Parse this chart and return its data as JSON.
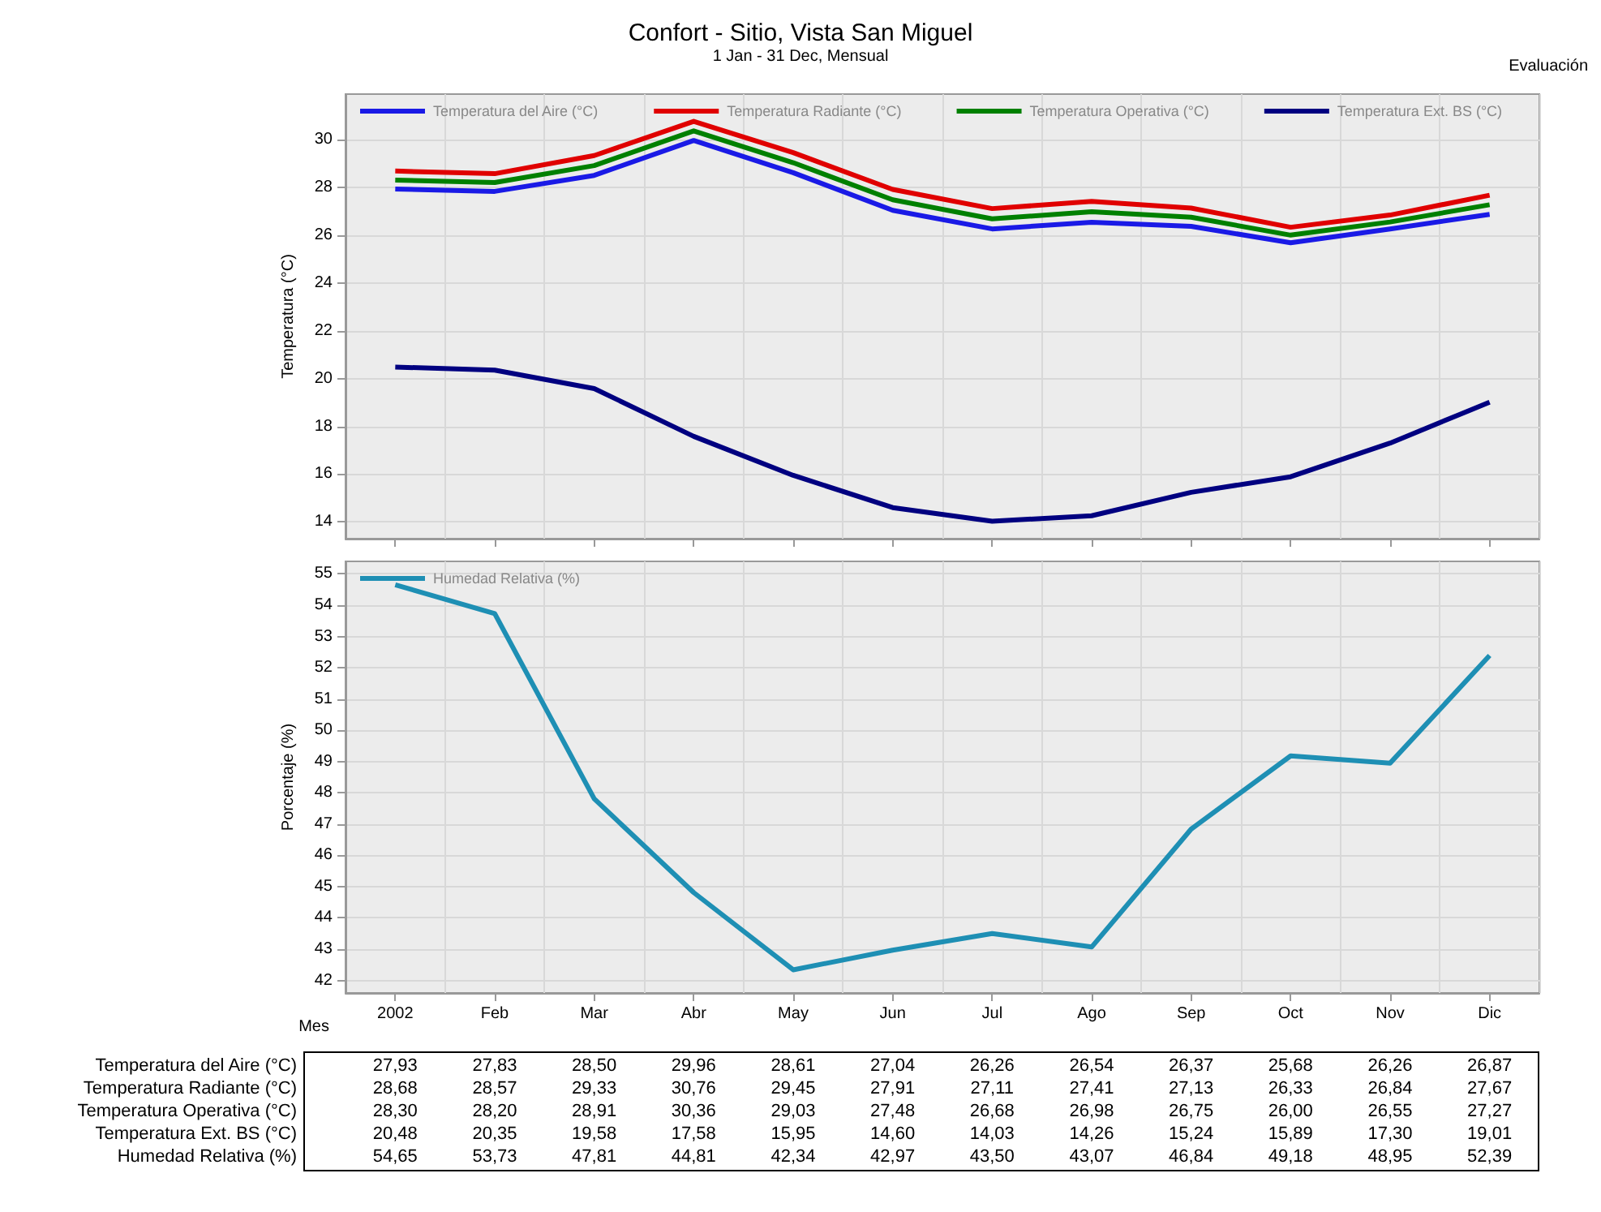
{
  "chart_data": [
    {
      "type": "line",
      "title": "Confort - Sitio, Vista San Miguel",
      "subtitle": "1 Jan - 31 Dec, Mensual",
      "annotations": [
        "Evaluación"
      ],
      "ylabel": "Temperatura (°C)",
      "categories": [
        "2002",
        "Feb",
        "Mar",
        "Abr",
        "May",
        "Jun",
        "Jul",
        "Ago",
        "Sep",
        "Oct",
        "Nov",
        "Dic"
      ],
      "series": [
        {
          "name": "Temperatura del Aire (°C)",
          "color": "#1a1ae6",
          "values": [
            27.93,
            27.83,
            28.5,
            29.96,
            28.61,
            27.04,
            26.26,
            26.54,
            26.37,
            25.68,
            26.26,
            26.87
          ],
          "value_labels": [
            "27,93",
            "27,83",
            "28,50",
            "29,96",
            "28,61",
            "27,04",
            "26,26",
            "26,54",
            "26,37",
            "25,68",
            "26,26",
            "26,87"
          ]
        },
        {
          "name": "Temperatura Radiante (°C)",
          "color": "#e00000",
          "values": [
            28.68,
            28.57,
            29.33,
            30.76,
            29.45,
            27.91,
            27.11,
            27.41,
            27.13,
            26.33,
            26.84,
            27.67
          ],
          "value_labels": [
            "28,68",
            "28,57",
            "29,33",
            "30,76",
            "29,45",
            "27,91",
            "27,11",
            "27,41",
            "27,13",
            "26,33",
            "26,84",
            "27,67"
          ]
        },
        {
          "name": "Temperatura Operativa (°C)",
          "color": "#008000",
          "values": [
            28.3,
            28.2,
            28.91,
            30.36,
            29.03,
            27.48,
            26.68,
            26.98,
            26.75,
            26.0,
            26.55,
            27.27
          ],
          "value_labels": [
            "28,30",
            "28,20",
            "28,91",
            "30,36",
            "29,03",
            "27,48",
            "26,68",
            "26,98",
            "26,75",
            "26,00",
            "26,55",
            "27,27"
          ]
        },
        {
          "name": "Temperatura Ext. BS (°C)",
          "color": "#000080",
          "values": [
            20.48,
            20.35,
            19.58,
            17.58,
            15.95,
            14.6,
            14.03,
            14.26,
            15.24,
            15.89,
            17.3,
            19.01
          ],
          "value_labels": [
            "20,48",
            "20,35",
            "19,58",
            "17,58",
            "15,95",
            "14,60",
            "14,03",
            "14,26",
            "15,24",
            "15,89",
            "17,30",
            "19,01"
          ]
        }
      ],
      "ylim": [
        13.3,
        31.9
      ],
      "yticks": [
        14,
        16,
        18,
        20,
        22,
        24,
        26,
        28,
        30
      ],
      "grid": true,
      "legend": "top",
      "tick_labels": "y"
    },
    {
      "type": "line",
      "xlabel": "Mes",
      "ylabel": "Porcentaje (%)",
      "series": [
        {
          "name": "Humedad Relativa (%)",
          "color": "#1e8fb4",
          "values": [
            54.65,
            53.73,
            47.81,
            44.81,
            42.34,
            42.97,
            43.5,
            43.07,
            46.84,
            49.18,
            48.95,
            52.39
          ],
          "value_labels": [
            "54,65",
            "53,73",
            "47,81",
            "44,81",
            "42,34",
            "42,97",
            "43,50",
            "43,07",
            "46,84",
            "49,18",
            "48,95",
            "52,39"
          ]
        }
      ],
      "ylim": [
        41.6,
        55.4
      ],
      "yticks": [
        42,
        43,
        44,
        45,
        46,
        47,
        48,
        49,
        50,
        51,
        52,
        53,
        54,
        55
      ],
      "grid": true,
      "legend": "top"
    }
  ]
}
